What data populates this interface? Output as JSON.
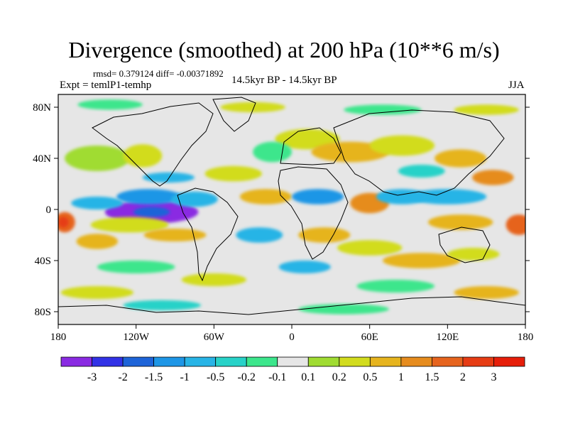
{
  "title": "Divergence (smoothed) at 200 hPa (10**6 m/s)",
  "stats": "rmsd= 0.379124  diff= -0.00371892",
  "experiment": "Expt = temlP1-temhp",
  "period": "14.5kyr BP - 14.5kyr BP",
  "season": "JJA",
  "x_axis": {
    "range": [
      -180,
      180
    ],
    "ticks": [
      {
        "value": -180,
        "label": "180"
      },
      {
        "value": -120,
        "label": "120W"
      },
      {
        "value": -60,
        "label": "60W"
      },
      {
        "value": 0,
        "label": "0"
      },
      {
        "value": 60,
        "label": "60E"
      },
      {
        "value": 120,
        "label": "120E"
      },
      {
        "value": 180,
        "label": "180"
      }
    ]
  },
  "y_axis": {
    "range": [
      -90,
      90
    ],
    "ticks": [
      {
        "value": 80,
        "label": "80N"
      },
      {
        "value": 40,
        "label": "40N"
      },
      {
        "value": 0,
        "label": "0"
      },
      {
        "value": -40,
        "label": "40S"
      },
      {
        "value": -80,
        "label": "80S"
      }
    ]
  },
  "colorbar": {
    "colors": [
      "#8a2be2",
      "#3232e6",
      "#1e64d8",
      "#1e96e6",
      "#28b4e6",
      "#28d2c8",
      "#3ce68c",
      "#e6e6e6",
      "#a0dc32",
      "#d2dc1e",
      "#e6b41e",
      "#e68c1e",
      "#e6641e",
      "#e63c14",
      "#e61e0a"
    ],
    "labels": [
      "-3",
      "-2",
      "-1.5",
      "-1",
      "-0.5",
      "-0.2",
      "-0.1",
      "0.1",
      "0.2",
      "0.5",
      "1",
      "1.5",
      "2",
      "3"
    ]
  },
  "field_blobs": [
    {
      "lon": -108,
      "lat": -2,
      "rx": 36,
      "ry": 9,
      "level": 0
    },
    {
      "lon": -108,
      "lat": -2,
      "rx": 14,
      "ry": 4,
      "level": 2
    },
    {
      "lon": -110,
      "lat": 10,
      "rx": 25,
      "ry": 6,
      "level": 3
    },
    {
      "lon": -75,
      "lat": 8,
      "rx": 18,
      "ry": 6,
      "level": 4
    },
    {
      "lon": -150,
      "lat": 5,
      "rx": 20,
      "ry": 5,
      "level": 4
    },
    {
      "lon": -125,
      "lat": -12,
      "rx": 30,
      "ry": 6,
      "level": 9
    },
    {
      "lon": -90,
      "lat": -20,
      "rx": 24,
      "ry": 5,
      "level": 10
    },
    {
      "lon": -175,
      "lat": -10,
      "rx": 8,
      "ry": 8,
      "level": 12
    },
    {
      "lon": -176,
      "lat": -10,
      "rx": 4,
      "ry": 4,
      "level": 13
    },
    {
      "lon": -150,
      "lat": -25,
      "rx": 16,
      "ry": 6,
      "level": 10
    },
    {
      "lon": -150,
      "lat": 40,
      "rx": 25,
      "ry": 10,
      "level": 8
    },
    {
      "lon": -115,
      "lat": 42,
      "rx": 15,
      "ry": 9,
      "level": 9
    },
    {
      "lon": -95,
      "lat": 25,
      "rx": 20,
      "ry": 4,
      "level": 4
    },
    {
      "lon": -45,
      "lat": 28,
      "rx": 22,
      "ry": 6,
      "level": 9
    },
    {
      "lon": -20,
      "lat": 10,
      "rx": 20,
      "ry": 6,
      "level": 10
    },
    {
      "lon": -25,
      "lat": -20,
      "rx": 18,
      "ry": 6,
      "level": 4
    },
    {
      "lon": 12,
      "lat": 55,
      "rx": 25,
      "ry": 8,
      "level": 9
    },
    {
      "lon": 45,
      "lat": 45,
      "rx": 30,
      "ry": 8,
      "level": 10
    },
    {
      "lon": 85,
      "lat": 50,
      "rx": 25,
      "ry": 8,
      "level": 9
    },
    {
      "lon": 130,
      "lat": 40,
      "rx": 20,
      "ry": 7,
      "level": 10
    },
    {
      "lon": 155,
      "lat": 25,
      "rx": 16,
      "ry": 6,
      "level": 11
    },
    {
      "lon": 120,
      "lat": 10,
      "rx": 30,
      "ry": 6,
      "level": 4
    },
    {
      "lon": 130,
      "lat": -10,
      "rx": 25,
      "ry": 6,
      "level": 10
    },
    {
      "lon": 175,
      "lat": -12,
      "rx": 10,
      "ry": 8,
      "level": 12
    },
    {
      "lon": 60,
      "lat": 5,
      "rx": 15,
      "ry": 8,
      "level": 11
    },
    {
      "lon": 85,
      "lat": 10,
      "rx": 20,
      "ry": 6,
      "level": 4
    },
    {
      "lon": 20,
      "lat": 10,
      "rx": 20,
      "ry": 6,
      "level": 3
    },
    {
      "lon": 25,
      "lat": -20,
      "rx": 20,
      "ry": 6,
      "level": 10
    },
    {
      "lon": 60,
      "lat": -30,
      "rx": 25,
      "ry": 6,
      "level": 9
    },
    {
      "lon": 100,
      "lat": -40,
      "rx": 30,
      "ry": 6,
      "level": 10
    },
    {
      "lon": 140,
      "lat": -35,
      "rx": 20,
      "ry": 5,
      "level": 9
    },
    {
      "lon": 10,
      "lat": -45,
      "rx": 20,
      "ry": 5,
      "level": 4
    },
    {
      "lon": -120,
      "lat": -45,
      "rx": 30,
      "ry": 5,
      "level": 6
    },
    {
      "lon": -60,
      "lat": -55,
      "rx": 25,
      "ry": 5,
      "level": 9
    },
    {
      "lon": 80,
      "lat": -60,
      "rx": 30,
      "ry": 5,
      "level": 6
    },
    {
      "lon": -150,
      "lat": -65,
      "rx": 28,
      "ry": 5,
      "level": 9
    },
    {
      "lon": 150,
      "lat": -65,
      "rx": 25,
      "ry": 5,
      "level": 10
    },
    {
      "lon": -100,
      "lat": -75,
      "rx": 30,
      "ry": 4,
      "level": 5
    },
    {
      "lon": 40,
      "lat": -78,
      "rx": 35,
      "ry": 4,
      "level": 6
    },
    {
      "lon": -140,
      "lat": 82,
      "rx": 25,
      "ry": 4,
      "level": 6
    },
    {
      "lon": -30,
      "lat": 80,
      "rx": 25,
      "ry": 4,
      "level": 9
    },
    {
      "lon": 70,
      "lat": 78,
      "rx": 30,
      "ry": 4,
      "level": 6
    },
    {
      "lon": 150,
      "lat": 78,
      "rx": 25,
      "ry": 4,
      "level": 9
    },
    {
      "lon": -15,
      "lat": 45,
      "rx": 15,
      "ry": 8,
      "level": 6
    },
    {
      "lon": 100,
      "lat": 30,
      "rx": 18,
      "ry": 5,
      "level": 5
    }
  ]
}
